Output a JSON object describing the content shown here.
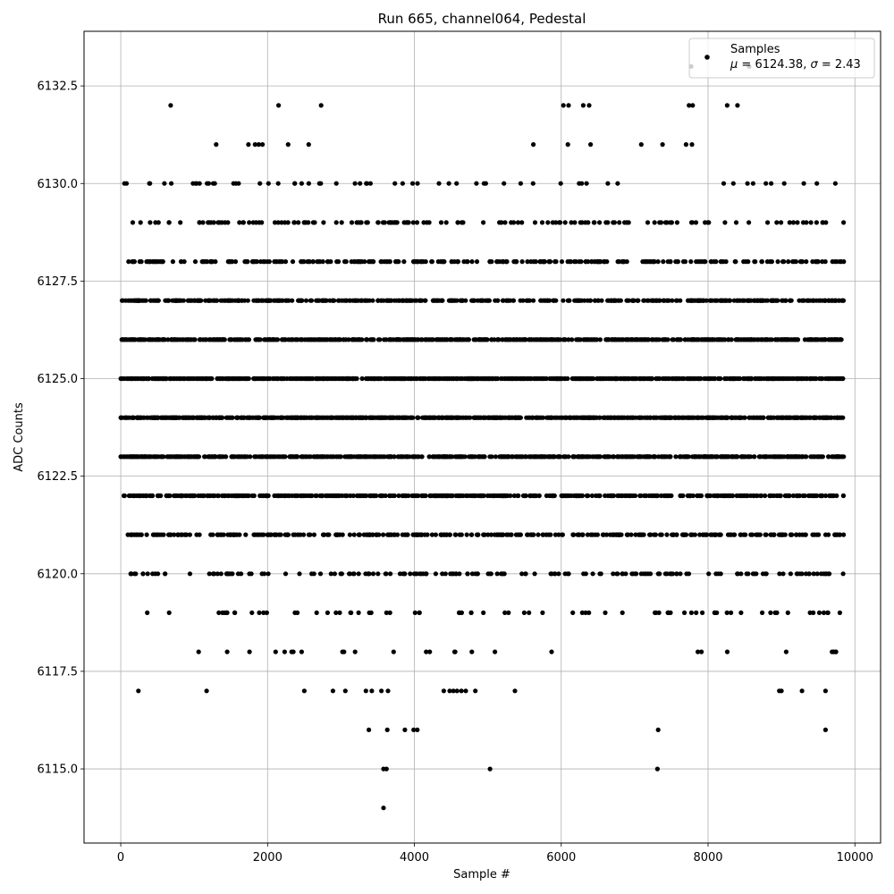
{
  "chart_data": {
    "type": "scatter",
    "title": "Run 665, channel064, Pedestal",
    "xlabel": "Sample #",
    "ylabel": "ADC Counts",
    "xlim": [
      -500,
      10350
    ],
    "ylim": [
      6113.1,
      6133.9
    ],
    "xticks": [
      0,
      2000,
      4000,
      6000,
      8000,
      10000
    ],
    "yticks": [
      6115.0,
      6117.5,
      6120.0,
      6122.5,
      6125.0,
      6127.5,
      6130.0,
      6132.5
    ],
    "ytick_labels": [
      "6115.0",
      "6117.5",
      "6120.0",
      "6122.5",
      "6125.0",
      "6127.5",
      "6130.0",
      "6132.5"
    ],
    "grid": true,
    "legend": {
      "placement": "top-right",
      "label": "Samples",
      "stats_mu_symbol": "μ",
      "stats_mu_value": " = 6124.38, ",
      "stats_sigma_symbol": "σ",
      "stats_sigma_value": " = 2.43"
    },
    "marker_color": "#000000",
    "series": [
      {
        "mean": 6124.38,
        "std": 2.43,
        "x_range": [
          0,
          9850
        ],
        "levels": [
          {
            "y": 6124,
            "x_ranges": [
              [
                0,
                9850
              ]
            ]
          },
          {
            "y": 6125,
            "x_ranges": [
              [
                0,
                9850
              ]
            ]
          },
          {
            "y": 6126,
            "x_ranges": [
              [
                0,
                9850
              ]
            ]
          },
          {
            "y": 6123,
            "x_ranges": [
              [
                0,
                9850
              ]
            ]
          },
          {
            "y": 6127,
            "x_ranges": [
              [
                0,
                9850
              ]
            ]
          },
          {
            "y": 6122,
            "x_ranges": [
              [
                0,
                9850
              ]
            ]
          },
          {
            "y": 6128,
            "x_ranges": [
              [
                0,
                9850
              ]
            ]
          },
          {
            "y": 6121,
            "x_ranges": [
              [
                80,
                9850
              ]
            ]
          },
          {
            "y": 6129,
            "x_ranges": [
              [
                0,
                9850
              ]
            ]
          },
          {
            "y": 6120,
            "x_ranges": [
              [
                60,
                9850
              ]
            ]
          },
          {
            "y": 6119,
            "x_ranges": [
              [
                80,
                9800
              ]
            ]
          },
          {
            "y": 6130,
            "x_ranges": [
              [
                50,
                9820
              ]
            ]
          },
          {
            "y": 6118,
            "x_ranges": [
              [
                300,
                9850
              ]
            ]
          }
        ],
        "sparse_points": [
          {
            "x": 680,
            "y": 6132
          },
          {
            "x": 2150,
            "y": 6132
          },
          {
            "x": 2730,
            "y": 6132
          },
          {
            "x": 6030,
            "y": 6132
          },
          {
            "x": 6100,
            "y": 6132
          },
          {
            "x": 6300,
            "y": 6132
          },
          {
            "x": 6380,
            "y": 6132
          },
          {
            "x": 7740,
            "y": 6132
          },
          {
            "x": 7790,
            "y": 6132
          },
          {
            "x": 8260,
            "y": 6132
          },
          {
            "x": 8400,
            "y": 6132
          },
          {
            "x": 7770,
            "y": 6133
          },
          {
            "x": 8560,
            "y": 6133
          },
          {
            "x": 1300,
            "y": 6131
          },
          {
            "x": 1740,
            "y": 6131
          },
          {
            "x": 1830,
            "y": 6131
          },
          {
            "x": 1880,
            "y": 6131
          },
          {
            "x": 1930,
            "y": 6131
          },
          {
            "x": 2280,
            "y": 6131
          },
          {
            "x": 2560,
            "y": 6131
          },
          {
            "x": 5620,
            "y": 6131
          },
          {
            "x": 6090,
            "y": 6131
          },
          {
            "x": 6400,
            "y": 6131
          },
          {
            "x": 7090,
            "y": 6131
          },
          {
            "x": 7380,
            "y": 6131
          },
          {
            "x": 7700,
            "y": 6131
          },
          {
            "x": 7780,
            "y": 6131
          },
          {
            "x": 240,
            "y": 6117
          },
          {
            "x": 1170,
            "y": 6117
          },
          {
            "x": 2500,
            "y": 6117
          },
          {
            "x": 2890,
            "y": 6117
          },
          {
            "x": 3060,
            "y": 6117
          },
          {
            "x": 3340,
            "y": 6117
          },
          {
            "x": 3420,
            "y": 6117
          },
          {
            "x": 3550,
            "y": 6117
          },
          {
            "x": 3640,
            "y": 6117
          },
          {
            "x": 4400,
            "y": 6117
          },
          {
            "x": 4480,
            "y": 6117
          },
          {
            "x": 4530,
            "y": 6117
          },
          {
            "x": 4580,
            "y": 6117
          },
          {
            "x": 4640,
            "y": 6117
          },
          {
            "x": 4700,
            "y": 6117
          },
          {
            "x": 4830,
            "y": 6117
          },
          {
            "x": 5370,
            "y": 6117
          },
          {
            "x": 8970,
            "y": 6117
          },
          {
            "x": 9000,
            "y": 6117
          },
          {
            "x": 9280,
            "y": 6117
          },
          {
            "x": 9600,
            "y": 6117
          },
          {
            "x": 3380,
            "y": 6116
          },
          {
            "x": 3630,
            "y": 6116
          },
          {
            "x": 3870,
            "y": 6116
          },
          {
            "x": 3990,
            "y": 6116
          },
          {
            "x": 4040,
            "y": 6116
          },
          {
            "x": 7320,
            "y": 6116
          },
          {
            "x": 9600,
            "y": 6116
          },
          {
            "x": 3580,
            "y": 6115
          },
          {
            "x": 3620,
            "y": 6115
          },
          {
            "x": 5030,
            "y": 6115
          },
          {
            "x": 7310,
            "y": 6115
          },
          {
            "x": 3580,
            "y": 6114
          }
        ]
      }
    ]
  }
}
